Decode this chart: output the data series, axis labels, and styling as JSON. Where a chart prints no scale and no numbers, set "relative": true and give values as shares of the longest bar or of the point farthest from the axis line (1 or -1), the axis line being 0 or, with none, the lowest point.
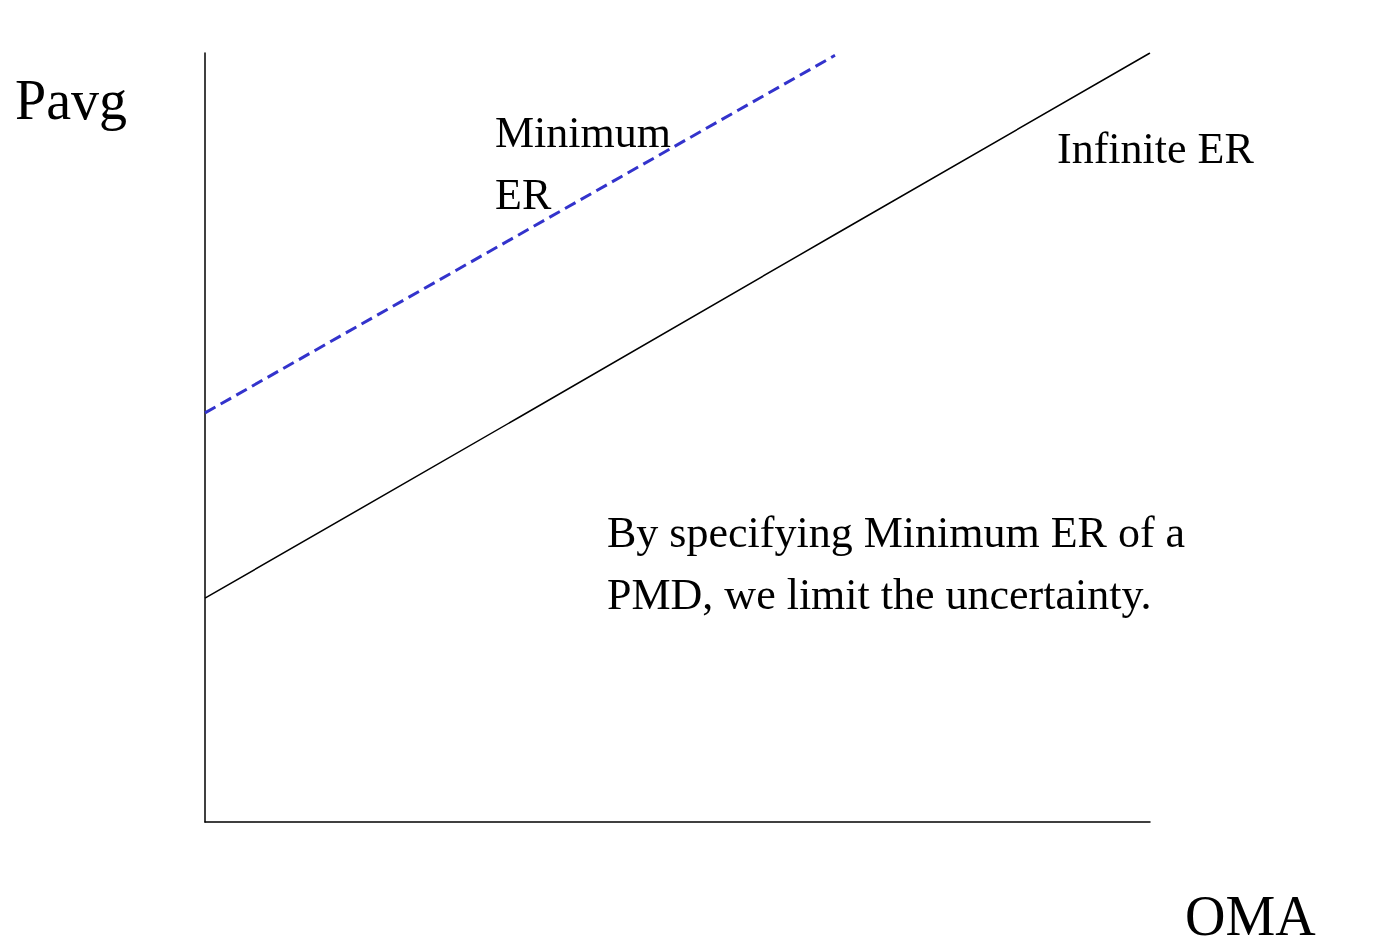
{
  "chart_data": {
    "type": "line",
    "relative": true,
    "ylabel": "Pavg",
    "xlabel": "OMA",
    "categories": [
      null,
      null,
      null,
      null
    ],
    "series": [
      {
        "name": "Minimum ER",
        "color": "#3333cc",
        "line_style": "dashed",
        "values": [
          0.532,
          null,
          0.997,
          null
        ]
      },
      {
        "name": "Infinite ER",
        "color": "#000000",
        "line_style": "solid",
        "values": [
          0.291,
          0.527,
          0.764,
          1
        ]
      }
    ],
    "annotations": [
      "By specifying Minimum ER of a PMD, we limit the uncertainty."
    ],
    "marker": "none",
    "grid": false,
    "legend": false
  }
}
